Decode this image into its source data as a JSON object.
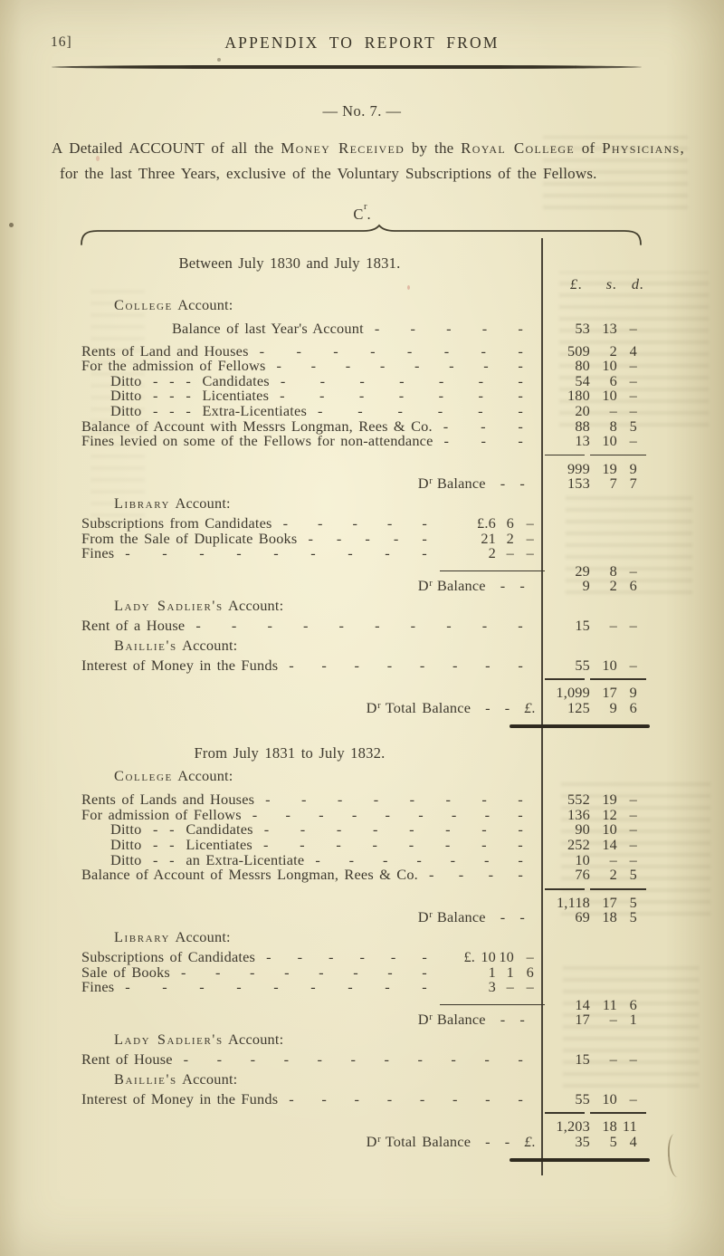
{
  "page": {
    "page_number": "16]",
    "running_title": "APPENDIX TO REPORT FROM",
    "doc_number": "— No. 7. —",
    "intro": [
      {
        "text": "A Detailed "
      },
      {
        "text": "ACCOUNT"
      },
      {
        "text": " of all the "
      },
      {
        "text": "Money Received",
        "sc": true
      },
      {
        "text": " by the "
      },
      {
        "text": "Royal College",
        "sc": true
      },
      {
        "text": " of "
      },
      {
        "text": "Physicians",
        "sc": true
      },
      {
        "text": ", for the last Three Years, exclusive of the Voluntary Subscriptions of the Fellows."
      }
    ],
    "credit_abbrev": {
      "pre": "C",
      "sup": "r",
      "post": "."
    }
  },
  "table": {
    "leader_glyph": "-",
    "debit_abbrev": {
      "pre": "D",
      "sup": "r"
    },
    "currency_header": {
      "pounds": "£.",
      "shillings": "s.",
      "pence": "d."
    },
    "periods": [
      {
        "heading": "Between July 1830 and July 1831.",
        "rows": [
          {
            "t": "lsd"
          },
          {
            "t": "head",
            "sc": "College",
            "rest": " Account:"
          },
          {
            "t": "item",
            "col": "outer",
            "indent": 2,
            "cls": "gap",
            "label": "Balance of last Year's Account",
            "dashes": 5,
            "amt": [
              "53",
              "13",
              "–"
            ]
          },
          {
            "t": "item",
            "col": "outer",
            "cls": "gap",
            "label": "Rents of Land and Houses",
            "dashes": 8,
            "amt": [
              "509",
              "2",
              "4"
            ]
          },
          {
            "t": "item",
            "col": "outer",
            "label": "For the admission of Fellows",
            "dashes": 8,
            "amt": [
              "80",
              "10",
              "–"
            ]
          },
          {
            "t": "item",
            "col": "outer",
            "indent": 1,
            "label": "Ditto  -  -  -  Candidates",
            "dashes": 7,
            "amt": [
              "54",
              "6",
              "–"
            ]
          },
          {
            "t": "item",
            "col": "outer",
            "indent": 1,
            "label": "Ditto  -  -  -  Licentiates",
            "dashes": 7,
            "amt": [
              "180",
              "10",
              "–"
            ]
          },
          {
            "t": "item",
            "col": "outer",
            "indent": 1,
            "label": "Ditto  -  -  -  Extra-Licentiates",
            "dashes": 6,
            "amt": [
              "20",
              "–",
              "–"
            ]
          },
          {
            "t": "item",
            "col": "outer",
            "label": "Balance of Account with Messrs Longman, Rees & Co.",
            "dashes": 3,
            "amt": [
              "88",
              "8",
              "5"
            ]
          },
          {
            "t": "item",
            "col": "outer",
            "label": "Fines levied on some of the Fellows for non-attendance",
            "dashes": 3,
            "amt": [
              "13",
              "10",
              "–"
            ]
          },
          {
            "t": "rule"
          },
          {
            "t": "total",
            "amt": [
              "999",
              "19",
              "9"
            ]
          },
          {
            "t": "bal",
            "label": "Balance",
            "dashes": 2,
            "amt": [
              "153",
              "7",
              "7"
            ]
          },
          {
            "t": "head",
            "sc": "Library",
            "rest": " Account:"
          },
          {
            "t": "item",
            "col": "inner",
            "label": "Subscriptions from Candidates",
            "dashes": 5,
            "amt": [
              "£.6",
              "6",
              "–"
            ]
          },
          {
            "t": "item",
            "col": "inner",
            "label": "From the Sale of Duplicate Books",
            "dashes": 5,
            "amt": [
              "21",
              "2",
              "–"
            ]
          },
          {
            "t": "item",
            "col": "inner",
            "label": "Fines",
            "dashes": 9,
            "amt": [
              "2",
              "–",
              "–"
            ]
          },
          {
            "t": "innertotal",
            "amt": [
              "29",
              "8",
              "–"
            ]
          },
          {
            "t": "bal",
            "label": "Balance",
            "dashes": 2,
            "amt": [
              "9",
              "2",
              "6"
            ]
          },
          {
            "t": "head",
            "sc": "Lady Sadlier's",
            "rest": " Account:"
          },
          {
            "t": "item",
            "col": "outer",
            "label": "Rent of a House",
            "dashes": 10,
            "amt": [
              "15",
              "–",
              "–"
            ]
          },
          {
            "t": "head",
            "sc": "Baillie's",
            "rest": " Account:"
          },
          {
            "t": "item",
            "col": "outer",
            "label": "Interest of Money in the Funds",
            "dashes": 8,
            "amt": [
              "55",
              "10",
              "–"
            ]
          },
          {
            "t": "rule"
          },
          {
            "t": "total",
            "amt": [
              "1,099",
              "17",
              "9"
            ]
          },
          {
            "t": "totalbal",
            "label": "Total Balance",
            "dashes": 2,
            "tail": "£.",
            "amt": [
              "125",
              "9",
              "6"
            ]
          },
          {
            "t": "thickrule"
          }
        ]
      },
      {
        "heading": "From July 1831 to July 1832.",
        "rows": [
          {
            "t": "head",
            "sc": "College",
            "rest": " Account:"
          },
          {
            "t": "item",
            "col": "outer",
            "cls": "gap",
            "label": "Rents of Lands and Houses",
            "dashes": 8,
            "amt": [
              "552",
              "19",
              "–"
            ]
          },
          {
            "t": "item",
            "col": "outer",
            "label": "For admission of Fellows",
            "dashes": 9,
            "amt": [
              "136",
              "12",
              "–"
            ]
          },
          {
            "t": "item",
            "col": "outer",
            "indent": 1,
            "label": "Ditto  -  -  Candidates",
            "dashes": 8,
            "amt": [
              "90",
              "10",
              "–"
            ]
          },
          {
            "t": "item",
            "col": "outer",
            "indent": 1,
            "label": "Ditto  -  -  Licentiates",
            "dashes": 8,
            "amt": [
              "252",
              "14",
              "–"
            ]
          },
          {
            "t": "item",
            "col": "outer",
            "indent": 1,
            "label": "Ditto  -  -  an Extra-Licentiate",
            "dashes": 7,
            "amt": [
              "10",
              "–",
              "–"
            ]
          },
          {
            "t": "item",
            "col": "outer",
            "label": "Balance of Account of Messrs Longman, Rees & Co.",
            "dashes": 4,
            "amt": [
              "76",
              "2",
              "5"
            ]
          },
          {
            "t": "rule"
          },
          {
            "t": "total",
            "amt": [
              "1,118",
              "17",
              "5"
            ]
          },
          {
            "t": "bal",
            "label": "Balance",
            "dashes": 2,
            "amt": [
              "69",
              "18",
              "5"
            ]
          },
          {
            "t": "head",
            "sc": "Library",
            "rest": " Account:"
          },
          {
            "t": "item",
            "col": "inner",
            "label": "Subscriptions of Candidates",
            "dashes": 6,
            "amt": [
              "£. 10",
              "10",
              "–"
            ]
          },
          {
            "t": "item",
            "col": "inner",
            "label": "Sale of Books",
            "dashes": 8,
            "amt": [
              "1",
              "1",
              "6"
            ]
          },
          {
            "t": "item",
            "col": "inner",
            "label": "Fines",
            "dashes": 9,
            "amt": [
              "3",
              "–",
              "–"
            ]
          },
          {
            "t": "innertotal",
            "amt": [
              "14",
              "11",
              "6"
            ]
          },
          {
            "t": "bal",
            "label": "Balance",
            "dashes": 2,
            "amt": [
              "17",
              "–",
              "1"
            ]
          },
          {
            "t": "head",
            "sc": "Lady Sadlier's",
            "rest": " Account:"
          },
          {
            "t": "item",
            "col": "outer",
            "label": "Rent of House",
            "dashes": 11,
            "amt": [
              "15",
              "–",
              "–"
            ]
          },
          {
            "t": "head",
            "sc": "Baillie's",
            "rest": " Account:"
          },
          {
            "t": "item",
            "col": "outer",
            "label": "Interest of Money in the Funds",
            "dashes": 8,
            "amt": [
              "55",
              "10",
              "–"
            ]
          },
          {
            "t": "rule"
          },
          {
            "t": "total",
            "amt": [
              "1,203",
              "18",
              "11"
            ]
          },
          {
            "t": "totalbal",
            "label": "Total Balance",
            "dashes": 2,
            "tail": "£.",
            "amt": [
              "35",
              "5",
              "4"
            ]
          },
          {
            "t": "thickrule"
          }
        ]
      }
    ]
  }
}
